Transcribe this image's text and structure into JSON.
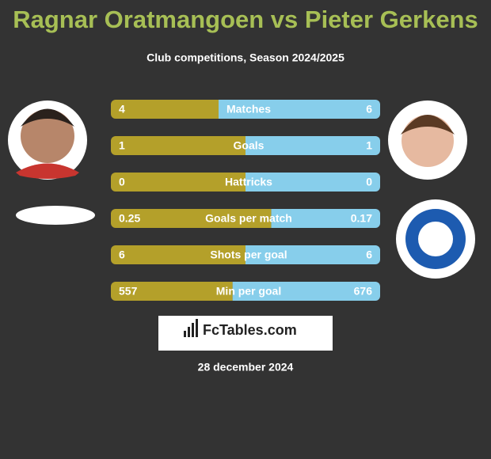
{
  "header": {
    "title": "Ragnar Oratmangoen vs Pieter Gerkens",
    "subtitle": "Club competitions, Season 2024/2025"
  },
  "rows": [
    {
      "label": "Matches",
      "left": 4,
      "right": 6
    },
    {
      "label": "Goals",
      "left": 1,
      "right": 1
    },
    {
      "label": "Hattricks",
      "left": 0,
      "right": 0
    },
    {
      "label": "Goals per match",
      "left": 0.25,
      "right": 0.17
    },
    {
      "label": "Shots per goal",
      "left": 6,
      "right": 6
    },
    {
      "label": "Min per goal",
      "left": 557,
      "right": 676
    }
  ],
  "brand": "FcTables.com",
  "date": "28 december 2024"
}
